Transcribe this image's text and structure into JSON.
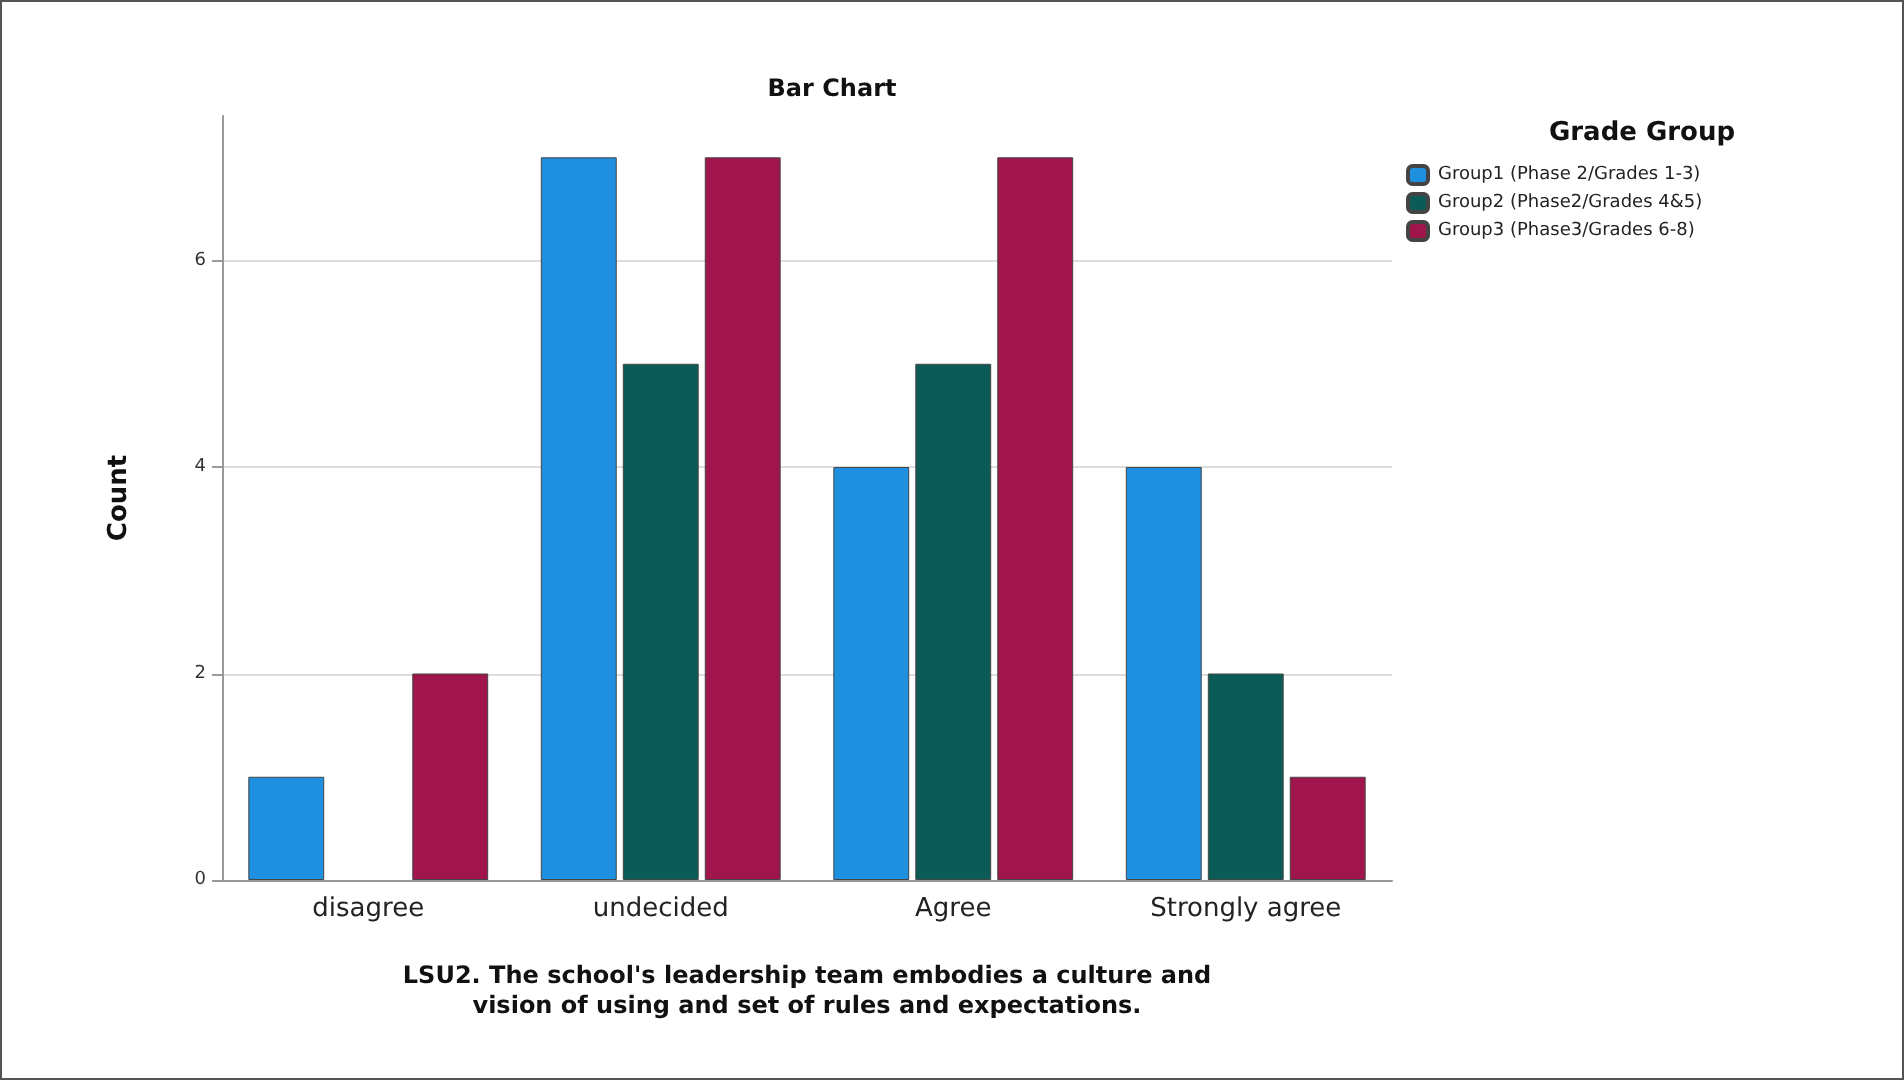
{
  "chart_data": {
    "type": "bar",
    "title": "Bar Chart",
    "xlabel": "LSU2. The school's leadership team embodies a culture and\nvision of using and set of rules and expectations.",
    "ylabel": "Count",
    "legend_title": "Grade Group",
    "categories": [
      "disagree",
      "undecided",
      "Agree",
      "Strongly agree"
    ],
    "series": [
      {
        "name": "Group1 (Phase 2/Grades 1-3)",
        "color": "#1f8fe0",
        "values": [
          1,
          7,
          4,
          4
        ]
      },
      {
        "name": "Group2 (Phase2/Grades 4&5)",
        "color": "#0b5c56",
        "values": [
          null,
          5,
          5,
          2
        ]
      },
      {
        "name": "Group3 (Phase3/Grades 6-8)",
        "color": "#a0164c",
        "values": [
          2,
          7,
          7,
          1
        ]
      }
    ],
    "ylim": [
      0,
      7.4
    ],
    "yticks": [
      0,
      2,
      4,
      6
    ],
    "grid": "y",
    "legend": "top right"
  }
}
